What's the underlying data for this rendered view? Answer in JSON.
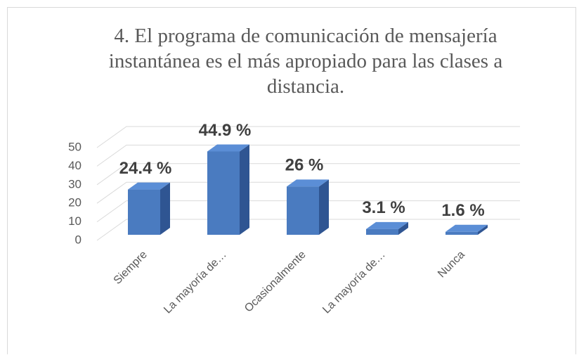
{
  "chart_data": {
    "type": "bar3d",
    "title": "4. El programa de comunicación de mensajería instantánea es el más apropiado para las clases a distancia.",
    "categories": [
      "Siempre",
      "La mayoría de…",
      "Ocasionalmente",
      "La mayoría de…",
      "Nunca"
    ],
    "values": [
      24.4,
      44.9,
      26,
      3.1,
      1.6
    ],
    "value_labels": [
      "24.4 %",
      "44.9 %",
      "26 %",
      "3.1 %",
      "1.6 %"
    ],
    "color": "#4a7bc0",
    "ylim": [
      0,
      50
    ],
    "yticks": [
      0,
      10,
      20,
      30,
      40,
      50
    ],
    "grid": true
  }
}
